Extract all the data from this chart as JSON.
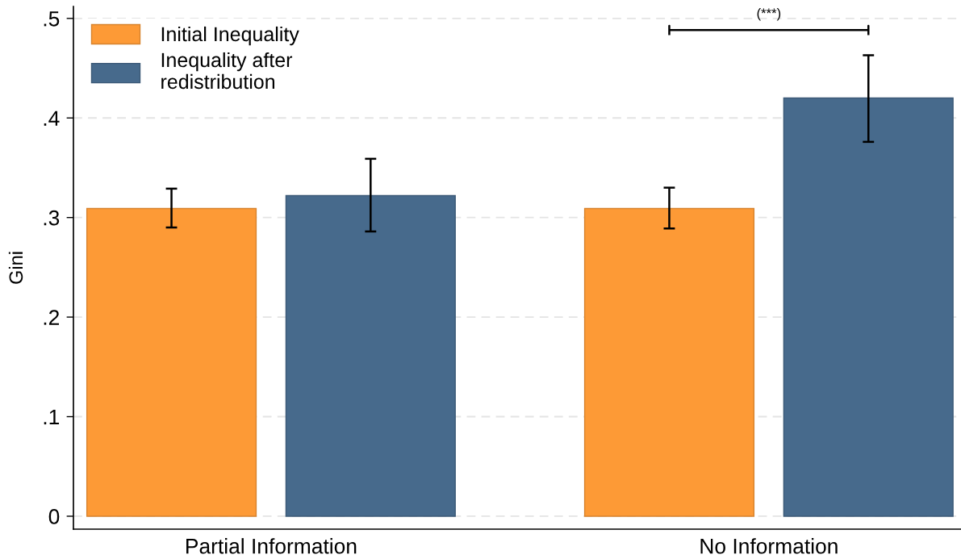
{
  "chart_data": {
    "type": "bar",
    "ylabel": "Gini",
    "categories": [
      "Partial Information",
      "No Information"
    ],
    "series": [
      {
        "name": "Initial Inequality",
        "color": "#fd9a36",
        "values": [
          0.309,
          0.309
        ],
        "errors": [
          [
            0.29,
            0.329
          ],
          [
            0.289,
            0.33
          ]
        ]
      },
      {
        "name": "Inequality after\nredistribution",
        "color": "#476a8c",
        "values": [
          0.322,
          0.42
        ],
        "errors": [
          [
            0.286,
            0.359
          ],
          [
            0.376,
            0.463
          ]
        ]
      }
    ],
    "ylim": [
      -0.013,
      0.512
    ],
    "yticks": [
      0,
      {
        "value": 0.1,
        "label": ".1"
      },
      {
        "value": 0.2,
        "label": ".2"
      },
      {
        "value": 0.3,
        "label": ".3"
      },
      {
        "value": 0.4,
        "label": ".4"
      },
      {
        "value": 0.5,
        "label": ".5"
      }
    ],
    "grid": "y",
    "legend": "top left",
    "annotations": [
      "(***)"
    ]
  }
}
